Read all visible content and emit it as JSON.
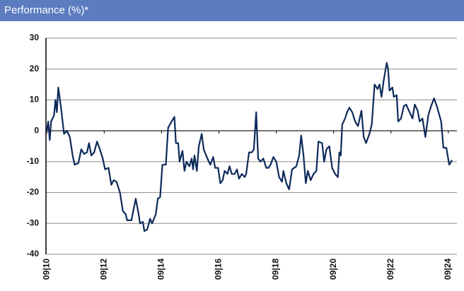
{
  "header": {
    "title": "Performance (%)*"
  },
  "chart_data": {
    "type": "line",
    "color": "#0d2a5a",
    "x": [
      2010.75,
      2010.8,
      2010.85,
      2010.9,
      2011.0,
      2011.05,
      2011.1,
      2011.15,
      2011.25,
      2011.35,
      2011.45,
      2011.55,
      2011.65,
      2011.72,
      2011.85,
      2011.95,
      2012.05,
      2012.15,
      2012.22,
      2012.3,
      2012.4,
      2012.5,
      2012.6,
      2012.7,
      2012.78,
      2012.9,
      2013.0,
      2013.08,
      2013.18,
      2013.3,
      2013.4,
      2013.5,
      2013.55,
      2013.7,
      2013.85,
      2013.95,
      2014.0,
      2014.1,
      2014.15,
      2014.25,
      2014.35,
      2014.42,
      2014.55,
      2014.62,
      2014.7,
      2014.78,
      2014.9,
      2014.98,
      2015.1,
      2015.2,
      2015.25,
      2015.33,
      2015.38,
      2015.48,
      2015.55,
      2015.62,
      2015.72,
      2015.8,
      2015.85,
      2015.9,
      2015.98,
      2016.05,
      2016.15,
      2016.22,
      2016.35,
      2016.45,
      2016.55,
      2016.62,
      2016.72,
      2016.8,
      2016.88,
      2016.95,
      2017.05,
      2017.12,
      2017.2,
      2017.3,
      2017.38,
      2017.45,
      2017.55,
      2017.65,
      2017.7,
      2017.8,
      2017.9,
      2017.97,
      2018.05,
      2018.12,
      2018.2,
      2018.3,
      2018.4,
      2018.48,
      2018.55,
      2018.65,
      2018.75,
      2018.85,
      2018.95,
      2019.0,
      2019.1,
      2019.2,
      2019.3,
      2019.45,
      2019.55,
      2019.62,
      2019.7,
      2019.78,
      2019.85,
      2019.95,
      2020.05,
      2020.15,
      2020.22,
      2020.35,
      2020.42,
      2020.5,
      2020.6,
      2020.7,
      2020.8,
      2020.9,
      2020.95,
      2021.0,
      2021.05,
      2021.15,
      2021.22,
      2021.3,
      2021.4,
      2021.5,
      2021.6,
      2021.72,
      2021.8,
      2021.88,
      2022.0,
      2022.08,
      2022.18,
      2022.28,
      2022.35,
      2022.42,
      2022.5,
      2022.6,
      2022.65,
      2022.7,
      2022.8,
      2022.85,
      2022.95,
      2023.0,
      2023.1,
      2023.2,
      2023.28,
      2023.4,
      2023.5,
      2023.58,
      2023.68,
      2023.75,
      2023.85,
      2023.95,
      2024.05,
      2024.15,
      2024.25,
      2024.35,
      2024.5,
      2024.58,
      2024.68,
      2024.78,
      2024.88
    ],
    "values": [
      0,
      3,
      -3,
      3,
      5,
      10,
      6,
      14,
      7,
      -1,
      0,
      -2,
      -8,
      -11,
      -10.5,
      -6,
      -7.5,
      -7,
      -4,
      -8,
      -7,
      -3.5,
      -6,
      -9,
      -12.5,
      -12,
      -17.5,
      -16,
      -16.5,
      -20,
      -26,
      -27,
      -29,
      -29,
      -22,
      -27,
      -30,
      -29.5,
      -32.5,
      -32,
      -28.5,
      -30,
      -27,
      -22,
      -21.5,
      -11,
      -11,
      1,
      3,
      4.5,
      -4,
      -4,
      -10,
      -6.5,
      -13,
      -10,
      -11.5,
      -9,
      -12.5,
      -8,
      -13,
      -5,
      -1,
      -6,
      -9,
      -11,
      -8.5,
      -12,
      -12,
      -17,
      -16,
      -13,
      -14,
      -11.5,
      -14,
      -14,
      -12.5,
      -15.5,
      -14,
      -15,
      -14,
      -7,
      -7,
      -6,
      6,
      -9,
      -10,
      -9,
      -12,
      -12,
      -11,
      -8.5,
      -10,
      -15,
      -16.5,
      -13,
      -17,
      -19,
      -12.5,
      -11.5,
      -8,
      -1.5,
      -8,
      -17,
      -13,
      -16,
      -14,
      -13,
      -3.5,
      -4,
      -10,
      -6,
      -5,
      -12,
      -14,
      -15,
      -7,
      -8,
      2,
      4,
      6,
      7.5,
      6,
      3,
      1.5,
      6.5,
      -2,
      -4,
      -1,
      2,
      15,
      13.5,
      15,
      11,
      16.5,
      22,
      20,
      13,
      14,
      11,
      11.5,
      3,
      4,
      8,
      8.5,
      6,
      4,
      8.5,
      6.5,
      3,
      4,
      -2,
      5,
      8,
      10.5,
      8,
      3,
      -5.5,
      -5.5,
      -11,
      -9.5
    ],
    "xlim": [
      2010.72,
      2025.05
    ],
    "xticks": [
      {
        "value": 2010.75,
        "label": "09|10"
      },
      {
        "value": 2012.75,
        "label": "09|12"
      },
      {
        "value": 2014.75,
        "label": "09|14"
      },
      {
        "value": 2016.75,
        "label": "09|16"
      },
      {
        "value": 2018.75,
        "label": "09|18"
      },
      {
        "value": 2020.75,
        "label": "09|20"
      },
      {
        "value": 2022.75,
        "label": "09|22"
      },
      {
        "value": 2024.75,
        "label": "09|24"
      }
    ],
    "ylim": [
      -40,
      30
    ],
    "yticks": [
      -40,
      -30,
      -20,
      -10,
      0,
      10,
      20,
      30
    ],
    "grid": true
  }
}
